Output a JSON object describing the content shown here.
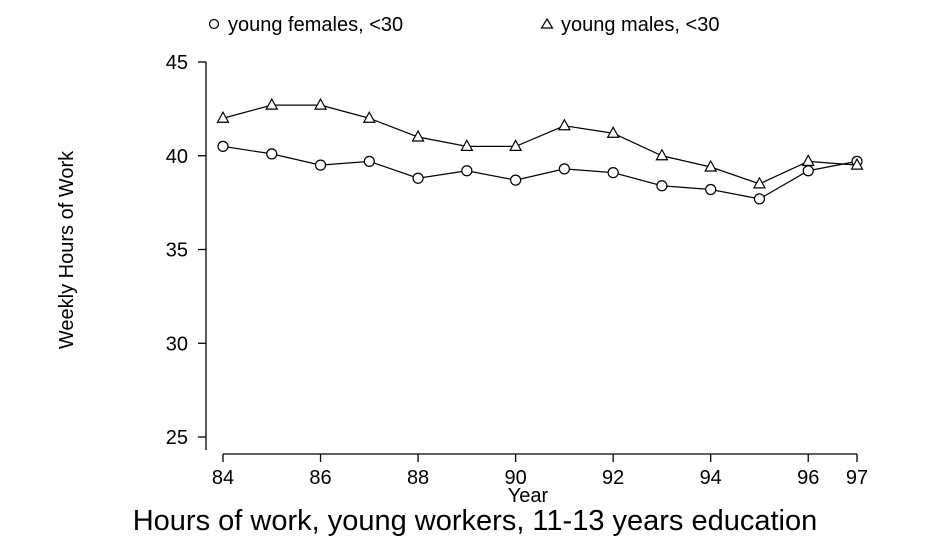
{
  "chart_data": {
    "type": "line",
    "title": "Hours of work, young workers, 11-13 years education",
    "xlabel": "Year",
    "ylabel": "Weekly Hours of Work",
    "xlim": [
      84,
      97
    ],
    "ylim": [
      25,
      45
    ],
    "x_ticks": [
      84,
      86,
      88,
      90,
      92,
      94,
      96,
      97
    ],
    "y_ticks": [
      25,
      30,
      35,
      40,
      45
    ],
    "x": [
      84,
      85,
      86,
      87,
      88,
      89,
      90,
      91,
      92,
      93,
      94,
      95,
      96,
      97
    ],
    "legend_position": "top",
    "grid": false,
    "series": [
      {
        "name": "young females, <30",
        "marker": "circle",
        "values": [
          40.5,
          40.1,
          39.5,
          39.7,
          38.8,
          39.2,
          38.7,
          39.3,
          39.1,
          38.4,
          38.2,
          37.7,
          39.2,
          39.7
        ]
      },
      {
        "name": "young males, <30",
        "marker": "triangle",
        "values": [
          42.0,
          42.7,
          42.7,
          42.0,
          41.0,
          40.5,
          40.5,
          41.6,
          41.2,
          40.0,
          39.4,
          38.5,
          39.7,
          39.5
        ]
      }
    ]
  }
}
